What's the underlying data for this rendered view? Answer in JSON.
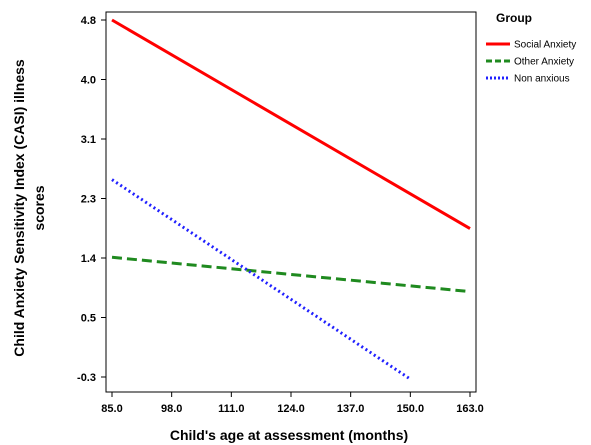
{
  "chart_data": {
    "type": "line",
    "xlabel": "Child's age at assessment (months)",
    "ylabel_line1": "Child Anxiety Sensitivity Index (CASI) illness",
    "ylabel_line2": "scores",
    "x_ticks": [
      "85.0",
      "98.0",
      "111.0",
      "124.0",
      "137.0",
      "150.0",
      "163.0"
    ],
    "y_ticks": [
      "4.8",
      "4.0",
      "3.1",
      "2.3",
      "1.4",
      "0.5",
      "-0.3"
    ],
    "xlim": [
      85.0,
      163.0
    ],
    "ylim": [
      -0.3,
      4.8
    ],
    "grid": false,
    "legend": {
      "title": "Group",
      "placement": "right"
    },
    "series": [
      {
        "name": "Social Anxiety",
        "color": "#ff0000",
        "style": "solid",
        "x": [
          85.0,
          163.0
        ],
        "y": [
          4.8,
          1.82
        ]
      },
      {
        "name": "Other Anxiety",
        "color": "#1f8a1f",
        "style": "dashed",
        "x": [
          85.0,
          163.0
        ],
        "y": [
          1.41,
          0.92
        ]
      },
      {
        "name": "Non anxious",
        "color": "#2020ff",
        "style": "dotted",
        "x": [
          85.0,
          150.0
        ],
        "y": [
          2.52,
          -0.33
        ]
      }
    ]
  }
}
